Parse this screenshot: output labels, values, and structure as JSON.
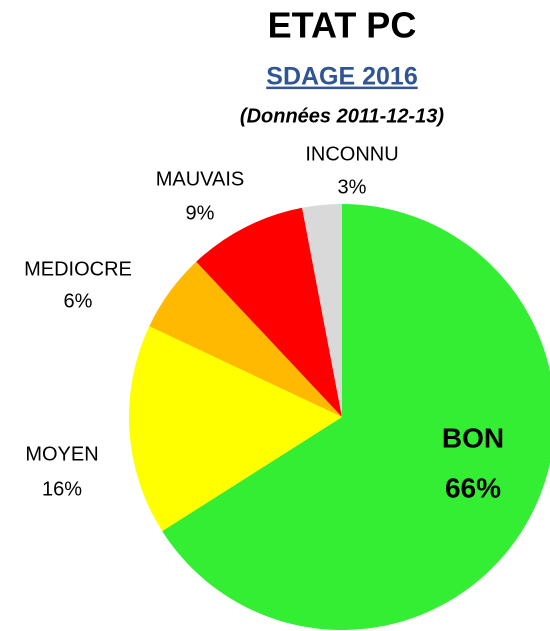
{
  "chart_data": {
    "type": "pie",
    "title": "ETAT PC",
    "subtitle": "SDAGE 2016",
    "note": "(Données 2011-12-13)",
    "categories": [
      "BON",
      "MOYEN",
      "MEDIOCRE",
      "MAUVAIS",
      "INCONNU"
    ],
    "values": [
      66,
      16,
      6,
      9,
      3
    ],
    "value_labels": [
      "66%",
      "16%",
      "6%",
      "9%",
      "3%"
    ],
    "colors": [
      "#33ee33",
      "#ffff00",
      "#ffb900",
      "#ff0000",
      "#d9d9d9"
    ]
  }
}
